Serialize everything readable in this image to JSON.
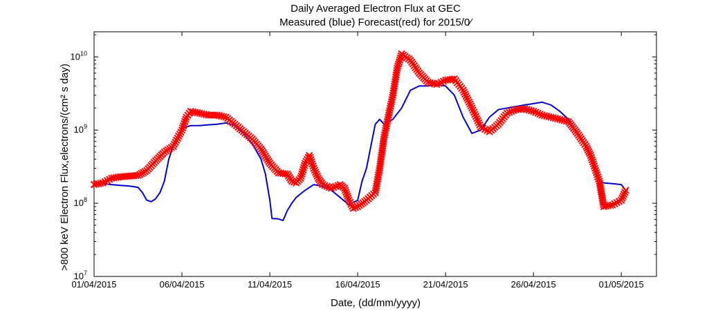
{
  "chart_data": {
    "type": "line",
    "title": "Daily Averaged Electron Flux at GEC",
    "subtitle": "Measured (blue) Forecast(red) for 2015/0⁄",
    "xlabel": "Date, (dd/mm/yyyy)",
    "ylabel": ">800 keV Electron Flux,electrons/(cm² s day)",
    "x_ticks": [
      "01/04/2015",
      "06/04/2015",
      "11/04/2015",
      "16/04/2015",
      "21/04/2015",
      "26/04/2015",
      "01/05/2015"
    ],
    "xlim": [
      "2015-04-01",
      "2015-05-03"
    ],
    "yscale": "log",
    "ylim": [
      10000000,
      22000000000
    ],
    "y_ticks": [
      {
        "base": "10",
        "exp": "7"
      },
      {
        "base": "10",
        "exp": "8"
      },
      {
        "base": "10",
        "exp": "9"
      },
      {
        "base": "10",
        "exp": "10"
      }
    ],
    "grid": false,
    "series": [
      {
        "name": "Measured",
        "color": "#0000cc",
        "style": "line",
        "points": [
          [
            "2015-04-01 00:00",
            190000000
          ],
          [
            "2015-04-01 12:00",
            185000000
          ],
          [
            "2015-04-02 00:00",
            180000000
          ],
          [
            "2015-04-02 12:00",
            175000000
          ],
          [
            "2015-04-03 00:00",
            172000000
          ],
          [
            "2015-04-03 12:00",
            165000000
          ],
          [
            "2015-04-03 18:00",
            140000000
          ],
          [
            "2015-04-04 00:00",
            110000000
          ],
          [
            "2015-04-04 06:00",
            105000000
          ],
          [
            "2015-04-04 12:00",
            115000000
          ],
          [
            "2015-04-04 18:00",
            140000000
          ],
          [
            "2015-04-05 00:00",
            200000000
          ],
          [
            "2015-04-05 06:00",
            400000000
          ],
          [
            "2015-04-05 12:00",
            600000000
          ],
          [
            "2015-04-05 18:00",
            800000000
          ],
          [
            "2015-04-06 00:00",
            1050000000
          ],
          [
            "2015-04-06 12:00",
            1150000000
          ],
          [
            "2015-04-07 00:00",
            1150000000
          ],
          [
            "2015-04-07 12:00",
            1180000000
          ],
          [
            "2015-04-08 00:00",
            1200000000
          ],
          [
            "2015-04-08 12:00",
            1250000000
          ],
          [
            "2015-04-09 00:00",
            1150000000
          ],
          [
            "2015-04-09 12:00",
            900000000
          ],
          [
            "2015-04-10 00:00",
            650000000
          ],
          [
            "2015-04-10 12:00",
            400000000
          ],
          [
            "2015-04-10 18:00",
            250000000
          ],
          [
            "2015-04-11 00:00",
            110000000
          ],
          [
            "2015-04-11 03:00",
            62000000
          ],
          [
            "2015-04-11 12:00",
            61000000
          ],
          [
            "2015-04-11 18:00",
            58000000
          ],
          [
            "2015-04-12 00:00",
            80000000
          ],
          [
            "2015-04-12 06:00",
            100000000
          ],
          [
            "2015-04-12 12:00",
            120000000
          ],
          [
            "2015-04-13 00:00",
            150000000
          ],
          [
            "2015-04-13 12:00",
            180000000
          ],
          [
            "2015-04-14 00:00",
            170000000
          ],
          [
            "2015-04-14 12:00",
            150000000
          ],
          [
            "2015-04-15 00:00",
            120000000
          ],
          [
            "2015-04-15 12:00",
            95000000
          ],
          [
            "2015-04-16 00:00",
            110000000
          ],
          [
            "2015-04-16 06:00",
            200000000
          ],
          [
            "2015-04-16 12:00",
            300000000
          ],
          [
            "2015-04-16 18:00",
            600000000
          ],
          [
            "2015-04-17 00:00",
            1200000000
          ],
          [
            "2015-04-17 06:00",
            1400000000
          ],
          [
            "2015-04-17 12:00",
            1200000000
          ],
          [
            "2015-04-18 00:00",
            1400000000
          ],
          [
            "2015-04-18 12:00",
            2000000000
          ],
          [
            "2015-04-19 00:00",
            3500000000
          ],
          [
            "2015-04-19 12:00",
            4000000000
          ],
          [
            "2015-04-20 00:00",
            4000000000
          ],
          [
            "2015-04-20 12:00",
            4200000000
          ],
          [
            "2015-04-21 00:00",
            4000000000
          ],
          [
            "2015-04-21 12:00",
            3000000000
          ],
          [
            "2015-04-22 00:00",
            1500000000
          ],
          [
            "2015-04-22 12:00",
            900000000
          ],
          [
            "2015-04-23 00:00",
            1000000000
          ],
          [
            "2015-04-23 12:00",
            1500000000
          ],
          [
            "2015-04-24 00:00",
            1900000000
          ],
          [
            "2015-04-24 12:00",
            2000000000
          ],
          [
            "2015-04-25 00:00",
            2100000000
          ],
          [
            "2015-04-25 12:00",
            2200000000
          ],
          [
            "2015-04-26 00:00",
            2300000000
          ],
          [
            "2015-04-26 12:00",
            2400000000
          ],
          [
            "2015-04-27 00:00",
            2200000000
          ],
          [
            "2015-04-27 12:00",
            1800000000
          ],
          [
            "2015-04-28 00:00",
            1400000000
          ],
          [
            "2015-04-28 12:00",
            900000000
          ],
          [
            "2015-04-29 00:00",
            600000000
          ],
          [
            "2015-04-29 06:00",
            400000000
          ],
          [
            "2015-04-29 12:00",
            300000000
          ],
          [
            "2015-04-29 18:00",
            200000000
          ],
          [
            "2015-04-30 00:00",
            190000000
          ],
          [
            "2015-04-30 12:00",
            185000000
          ],
          [
            "2015-05-01 00:00",
            180000000
          ],
          [
            "2015-05-01 06:00",
            150000000
          ]
        ]
      },
      {
        "name": "Forecast",
        "color": "#ff0000",
        "style": "markers-x",
        "points": [
          [
            "2015-04-01 00:00",
            180000000
          ],
          [
            "2015-04-01 12:00",
            190000000
          ],
          [
            "2015-04-02 00:00",
            220000000
          ],
          [
            "2015-04-02 12:00",
            230000000
          ],
          [
            "2015-04-03 00:00",
            235000000
          ],
          [
            "2015-04-03 12:00",
            240000000
          ],
          [
            "2015-04-04 00:00",
            280000000
          ],
          [
            "2015-04-04 12:00",
            380000000
          ],
          [
            "2015-04-05 00:00",
            500000000
          ],
          [
            "2015-04-05 12:00",
            600000000
          ],
          [
            "2015-04-06 00:00",
            1000000000
          ],
          [
            "2015-04-06 06:00",
            1500000000
          ],
          [
            "2015-04-06 12:00",
            1800000000
          ],
          [
            "2015-04-07 00:00",
            1700000000
          ],
          [
            "2015-04-07 12:00",
            1600000000
          ],
          [
            "2015-04-08 00:00",
            1600000000
          ],
          [
            "2015-04-08 12:00",
            1500000000
          ],
          [
            "2015-04-09 00:00",
            1200000000
          ],
          [
            "2015-04-09 12:00",
            950000000
          ],
          [
            "2015-04-10 00:00",
            750000000
          ],
          [
            "2015-04-10 12:00",
            550000000
          ],
          [
            "2015-04-11 00:00",
            350000000
          ],
          [
            "2015-04-11 12:00",
            260000000
          ],
          [
            "2015-04-12 00:00",
            250000000
          ],
          [
            "2015-04-12 06:00",
            200000000
          ],
          [
            "2015-04-12 12:00",
            190000000
          ],
          [
            "2015-04-12 18:00",
            220000000
          ],
          [
            "2015-04-13 00:00",
            350000000
          ],
          [
            "2015-04-13 06:00",
            450000000
          ],
          [
            "2015-04-13 12:00",
            300000000
          ],
          [
            "2015-04-13 18:00",
            220000000
          ],
          [
            "2015-04-14 00:00",
            180000000
          ],
          [
            "2015-04-14 12:00",
            160000000
          ],
          [
            "2015-04-15 00:00",
            180000000
          ],
          [
            "2015-04-15 06:00",
            160000000
          ],
          [
            "2015-04-15 12:00",
            110000000
          ],
          [
            "2015-04-15 18:00",
            85000000
          ],
          [
            "2015-04-16 00:00",
            90000000
          ],
          [
            "2015-04-16 12:00",
            110000000
          ],
          [
            "2015-04-17 00:00",
            140000000
          ],
          [
            "2015-04-17 06:00",
            300000000
          ],
          [
            "2015-04-17 12:00",
            800000000
          ],
          [
            "2015-04-18 00:00",
            3000000000
          ],
          [
            "2015-04-18 06:00",
            7000000000
          ],
          [
            "2015-04-18 12:00",
            11000000000
          ],
          [
            "2015-04-19 00:00",
            9000000000
          ],
          [
            "2015-04-19 12:00",
            6000000000
          ],
          [
            "2015-04-20 00:00",
            4500000000
          ],
          [
            "2015-04-20 12:00",
            4200000000
          ],
          [
            "2015-04-21 00:00",
            4800000000
          ],
          [
            "2015-04-21 12:00",
            5000000000
          ],
          [
            "2015-04-22 00:00",
            3500000000
          ],
          [
            "2015-04-22 12:00",
            2000000000
          ],
          [
            "2015-04-23 00:00",
            1100000000
          ],
          [
            "2015-04-23 12:00",
            950000000
          ],
          [
            "2015-04-24 00:00",
            1200000000
          ],
          [
            "2015-04-24 12:00",
            1700000000
          ],
          [
            "2015-04-25 00:00",
            1900000000
          ],
          [
            "2015-04-25 12:00",
            1950000000
          ],
          [
            "2015-04-26 00:00",
            1800000000
          ],
          [
            "2015-04-26 12:00",
            1600000000
          ],
          [
            "2015-04-27 00:00",
            1500000000
          ],
          [
            "2015-04-27 12:00",
            1400000000
          ],
          [
            "2015-04-28 00:00",
            1300000000
          ],
          [
            "2015-04-28 12:00",
            900000000
          ],
          [
            "2015-04-29 00:00",
            600000000
          ],
          [
            "2015-04-29 06:00",
            450000000
          ],
          [
            "2015-04-29 12:00",
            300000000
          ],
          [
            "2015-04-29 18:00",
            200000000
          ],
          [
            "2015-04-30 00:00",
            90000000
          ],
          [
            "2015-04-30 12:00",
            95000000
          ],
          [
            "2015-05-01 00:00",
            110000000
          ],
          [
            "2015-05-01 06:00",
            150000000
          ]
        ]
      }
    ]
  }
}
